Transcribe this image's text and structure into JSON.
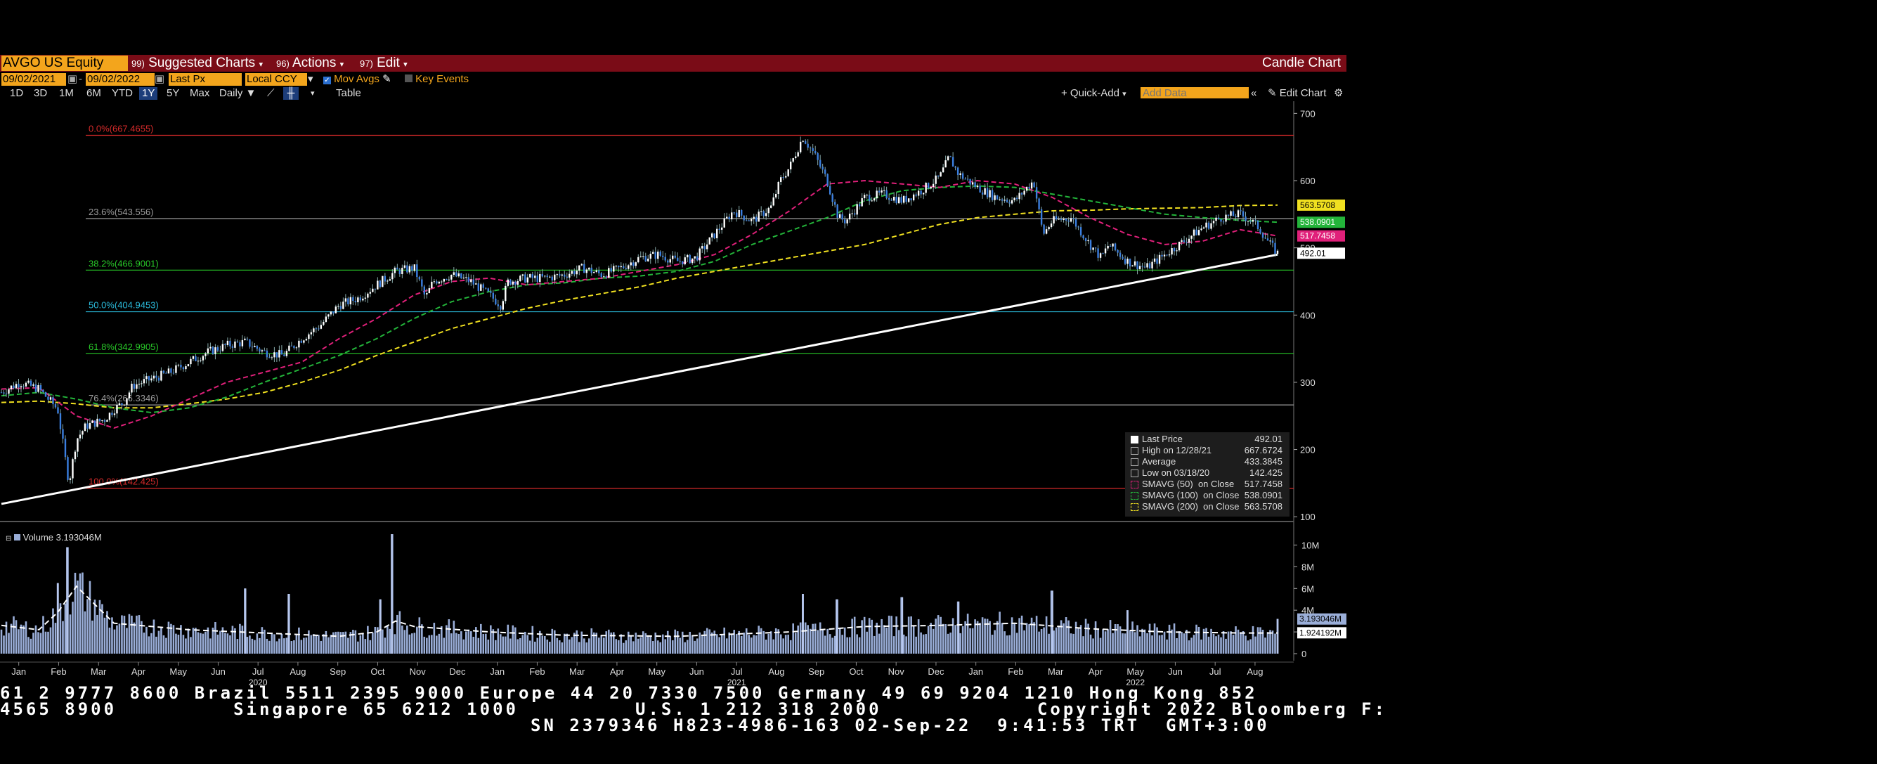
{
  "toolbar": {
    "ticker": "AVGO US Equity",
    "suggested": "Suggested Charts",
    "suggested_num": "99)",
    "actions": "Actions",
    "actions_num": "96)",
    "edit": "Edit",
    "edit_num": "97)",
    "title": "Candle Chart"
  },
  "controls": {
    "start_date": "09/02/2021",
    "end_date": "09/02/2022",
    "field": "Last Px",
    "currency": "Local CCY",
    "mov_avgs": "Mov Avgs",
    "key_events": "Key Events",
    "periods": [
      "1D",
      "3D",
      "1M",
      "6M",
      "YTD",
      "1Y",
      "5Y",
      "Max"
    ],
    "selected_period": "1Y",
    "frequency": "Daily",
    "table": "Table",
    "quick_add": "+ Quick-Add",
    "add_data_placeholder": "Add Data",
    "edit_chart": "Edit Chart"
  },
  "colors": {
    "bg": "#000000",
    "toolbar": "#7a0c17",
    "amber": "#f3a51c",
    "sma50": "#e0207a",
    "sma100": "#23b43a",
    "sma200": "#f0e020",
    "candle_up": "#ffffff",
    "candle_down": "#3b7fe0"
  },
  "chart_data": {
    "type": "candlestick",
    "x_ticks": [
      "Jan",
      "Feb",
      "Mar",
      "Apr",
      "May",
      "Jun",
      "Jul",
      "Aug",
      "Sep",
      "Oct",
      "Nov",
      "Dec",
      "Jan",
      "Feb",
      "Mar",
      "Apr",
      "May",
      "Jun",
      "Jul",
      "Aug",
      "Sep",
      "Oct",
      "Nov",
      "Dec",
      "Jan",
      "Feb",
      "Mar",
      "Apr",
      "May",
      "Jun",
      "Jul",
      "Aug"
    ],
    "year_labels": [
      {
        "year": "2020",
        "at": "Jul"
      },
      {
        "year": "2021",
        "at": "Jul"
      },
      {
        "year": "2022",
        "at": "May"
      }
    ],
    "y_ticks": [
      100,
      200,
      300,
      400,
      500,
      600,
      700
    ],
    "ylim": [
      95,
      715
    ],
    "price_series": [
      {
        "x": 0,
        "y": 285
      },
      {
        "x": 1,
        "y": 300
      },
      {
        "x": 2,
        "y": 290
      },
      {
        "x": 3,
        "y": 260
      },
      {
        "x": 3.6,
        "y": 150
      },
      {
        "x": 4,
        "y": 215
      },
      {
        "x": 4.5,
        "y": 235
      },
      {
        "x": 5,
        "y": 240
      },
      {
        "x": 5.5,
        "y": 245
      },
      {
        "x": 6,
        "y": 260
      },
      {
        "x": 6.5,
        "y": 270
      },
      {
        "x": 7,
        "y": 295
      },
      {
        "x": 8,
        "y": 305
      },
      {
        "x": 9,
        "y": 315
      },
      {
        "x": 10,
        "y": 330
      },
      {
        "x": 11,
        "y": 345
      },
      {
        "x": 12,
        "y": 355
      },
      {
        "x": 13,
        "y": 360
      },
      {
        "x": 14,
        "y": 345
      },
      {
        "x": 15,
        "y": 340
      },
      {
        "x": 16,
        "y": 365
      },
      {
        "x": 17,
        "y": 385
      },
      {
        "x": 18,
        "y": 415
      },
      {
        "x": 19,
        "y": 425
      },
      {
        "x": 20,
        "y": 445
      },
      {
        "x": 21,
        "y": 465
      },
      {
        "x": 22,
        "y": 470
      },
      {
        "x": 22.6,
        "y": 425
      },
      {
        "x": 23,
        "y": 450
      },
      {
        "x": 24,
        "y": 460
      },
      {
        "x": 25,
        "y": 450
      },
      {
        "x": 26,
        "y": 430
      },
      {
        "x": 26.6,
        "y": 415
      },
      {
        "x": 27,
        "y": 450
      },
      {
        "x": 28,
        "y": 455
      },
      {
        "x": 29,
        "y": 455
      },
      {
        "x": 30,
        "y": 460
      },
      {
        "x": 31,
        "y": 470
      },
      {
        "x": 32,
        "y": 460
      },
      {
        "x": 33,
        "y": 470
      },
      {
        "x": 34,
        "y": 485
      },
      {
        "x": 35,
        "y": 490
      },
      {
        "x": 36,
        "y": 480
      },
      {
        "x": 37,
        "y": 485
      },
      {
        "x": 38,
        "y": 520
      },
      {
        "x": 39,
        "y": 555
      },
      {
        "x": 40,
        "y": 540
      },
      {
        "x": 41,
        "y": 560
      },
      {
        "x": 41.5,
        "y": 600
      },
      {
        "x": 42,
        "y": 620
      },
      {
        "x": 42.7,
        "y": 665
      },
      {
        "x": 43.3,
        "y": 640
      },
      {
        "x": 44,
        "y": 600
      },
      {
        "x": 44.6,
        "y": 545
      },
      {
        "x": 45,
        "y": 540
      },
      {
        "x": 46,
        "y": 575
      },
      {
        "x": 47,
        "y": 580
      },
      {
        "x": 48,
        "y": 570
      },
      {
        "x": 49,
        "y": 585
      },
      {
        "x": 50,
        "y": 605
      },
      {
        "x": 50.5,
        "y": 635
      },
      {
        "x": 51,
        "y": 610
      },
      {
        "x": 52,
        "y": 590
      },
      {
        "x": 53,
        "y": 575
      },
      {
        "x": 54,
        "y": 570
      },
      {
        "x": 55,
        "y": 600
      },
      {
        "x": 55.5,
        "y": 520
      },
      {
        "x": 56,
        "y": 540
      },
      {
        "x": 57,
        "y": 545
      },
      {
        "x": 58,
        "y": 505
      },
      {
        "x": 58.6,
        "y": 485
      },
      {
        "x": 59,
        "y": 505
      },
      {
        "x": 60,
        "y": 480
      },
      {
        "x": 61,
        "y": 470
      },
      {
        "x": 62,
        "y": 490
      },
      {
        "x": 63,
        "y": 510
      },
      {
        "x": 64,
        "y": 530
      },
      {
        "x": 65,
        "y": 545
      },
      {
        "x": 66,
        "y": 550
      },
      {
        "x": 66.6,
        "y": 540
      },
      {
        "x": 67,
        "y": 530
      },
      {
        "x": 67.6,
        "y": 505
      },
      {
        "x": 68,
        "y": 492
      }
    ],
    "sma50": [
      {
        "x": 0,
        "y": 290
      },
      {
        "x": 2,
        "y": 292
      },
      {
        "x": 4,
        "y": 250
      },
      {
        "x": 6,
        "y": 232
      },
      {
        "x": 8,
        "y": 250
      },
      {
        "x": 10,
        "y": 275
      },
      {
        "x": 12,
        "y": 300
      },
      {
        "x": 14,
        "y": 315
      },
      {
        "x": 16,
        "y": 330
      },
      {
        "x": 18,
        "y": 365
      },
      {
        "x": 20,
        "y": 395
      },
      {
        "x": 22,
        "y": 430
      },
      {
        "x": 24,
        "y": 450
      },
      {
        "x": 26,
        "y": 455
      },
      {
        "x": 28,
        "y": 445
      },
      {
        "x": 30,
        "y": 450
      },
      {
        "x": 32,
        "y": 455
      },
      {
        "x": 34,
        "y": 465
      },
      {
        "x": 36,
        "y": 475
      },
      {
        "x": 38,
        "y": 490
      },
      {
        "x": 40,
        "y": 520
      },
      {
        "x": 42,
        "y": 555
      },
      {
        "x": 44,
        "y": 595
      },
      {
        "x": 46,
        "y": 600
      },
      {
        "x": 48,
        "y": 595
      },
      {
        "x": 50,
        "y": 590
      },
      {
        "x": 52,
        "y": 600
      },
      {
        "x": 54,
        "y": 595
      },
      {
        "x": 56,
        "y": 575
      },
      {
        "x": 58,
        "y": 545
      },
      {
        "x": 60,
        "y": 520
      },
      {
        "x": 62,
        "y": 505
      },
      {
        "x": 64,
        "y": 510
      },
      {
        "x": 66,
        "y": 527
      },
      {
        "x": 68,
        "y": 517.7
      }
    ],
    "sma100": [
      {
        "x": 0,
        "y": 280
      },
      {
        "x": 2,
        "y": 285
      },
      {
        "x": 4,
        "y": 275
      },
      {
        "x": 6,
        "y": 262
      },
      {
        "x": 8,
        "y": 255
      },
      {
        "x": 10,
        "y": 262
      },
      {
        "x": 12,
        "y": 278
      },
      {
        "x": 14,
        "y": 300
      },
      {
        "x": 16,
        "y": 320
      },
      {
        "x": 18,
        "y": 340
      },
      {
        "x": 20,
        "y": 365
      },
      {
        "x": 22,
        "y": 395
      },
      {
        "x": 24,
        "y": 420
      },
      {
        "x": 26,
        "y": 435
      },
      {
        "x": 28,
        "y": 445
      },
      {
        "x": 30,
        "y": 448
      },
      {
        "x": 32,
        "y": 455
      },
      {
        "x": 34,
        "y": 458
      },
      {
        "x": 36,
        "y": 465
      },
      {
        "x": 38,
        "y": 480
      },
      {
        "x": 40,
        "y": 505
      },
      {
        "x": 42,
        "y": 525
      },
      {
        "x": 44,
        "y": 545
      },
      {
        "x": 46,
        "y": 570
      },
      {
        "x": 48,
        "y": 585
      },
      {
        "x": 50,
        "y": 590
      },
      {
        "x": 52,
        "y": 592
      },
      {
        "x": 54,
        "y": 590
      },
      {
        "x": 56,
        "y": 580
      },
      {
        "x": 58,
        "y": 570
      },
      {
        "x": 60,
        "y": 560
      },
      {
        "x": 62,
        "y": 550
      },
      {
        "x": 64,
        "y": 545
      },
      {
        "x": 66,
        "y": 541
      },
      {
        "x": 68,
        "y": 538.1
      }
    ],
    "sma200": [
      {
        "x": 0,
        "y": 270
      },
      {
        "x": 2,
        "y": 272
      },
      {
        "x": 4,
        "y": 268
      },
      {
        "x": 6,
        "y": 262
      },
      {
        "x": 8,
        "y": 262
      },
      {
        "x": 10,
        "y": 268
      },
      {
        "x": 12,
        "y": 275
      },
      {
        "x": 14,
        "y": 285
      },
      {
        "x": 16,
        "y": 300
      },
      {
        "x": 18,
        "y": 318
      },
      {
        "x": 20,
        "y": 340
      },
      {
        "x": 22,
        "y": 360
      },
      {
        "x": 24,
        "y": 380
      },
      {
        "x": 26,
        "y": 395
      },
      {
        "x": 28,
        "y": 410
      },
      {
        "x": 30,
        "y": 422
      },
      {
        "x": 32,
        "y": 432
      },
      {
        "x": 34,
        "y": 442
      },
      {
        "x": 36,
        "y": 455
      },
      {
        "x": 38,
        "y": 465
      },
      {
        "x": 40,
        "y": 475
      },
      {
        "x": 42,
        "y": 485
      },
      {
        "x": 44,
        "y": 495
      },
      {
        "x": 46,
        "y": 505
      },
      {
        "x": 48,
        "y": 520
      },
      {
        "x": 50,
        "y": 535
      },
      {
        "x": 52,
        "y": 545
      },
      {
        "x": 54,
        "y": 550
      },
      {
        "x": 56,
        "y": 555
      },
      {
        "x": 58,
        "y": 556
      },
      {
        "x": 60,
        "y": 558
      },
      {
        "x": 62,
        "y": 559
      },
      {
        "x": 64,
        "y": 560
      },
      {
        "x": 66,
        "y": 563
      },
      {
        "x": 68,
        "y": 563.6
      }
    ],
    "fib_levels": [
      {
        "label": "0.0%(667.4655)",
        "value": 667.4655,
        "color": "#d42a2a"
      },
      {
        "label": "23.6%(543.556)",
        "value": 543.556,
        "color": "#9a9a9a"
      },
      {
        "label": "38.2%(466.9001)",
        "value": 466.9001,
        "color": "#28c828"
      },
      {
        "label": "50.0%(404.9453)",
        "value": 404.9453,
        "color": "#2ab8d8"
      },
      {
        "label": "61.8%(342.9905)",
        "value": 342.9905,
        "color": "#28c828"
      },
      {
        "label": "76.4%(266.3346)",
        "value": 266.3346,
        "color": "#9a9a9a"
      },
      {
        "label": "100.0%(142.425)",
        "value": 142.425,
        "color": "#d42a2a"
      }
    ],
    "trendline": {
      "from": {
        "x": 0,
        "y": 140
      },
      "to": {
        "x": 68,
        "y": 490
      }
    },
    "price_tags": [
      {
        "label": "563.5708",
        "value": 563.5708,
        "bg": "#f0e020",
        "fg": "#000"
      },
      {
        "label": "538.0901",
        "value": 538.0901,
        "bg": "#23b43a",
        "fg": "#fff"
      },
      {
        "label": "517.7458",
        "value": 517.7458,
        "bg": "#e0207a",
        "fg": "#fff"
      },
      {
        "label": "492.01",
        "value": 492.01,
        "bg": "#ffffff",
        "fg": "#000"
      }
    ],
    "legend": [
      {
        "name": "Last Price",
        "value": "492.01"
      },
      {
        "name": "High on 12/28/21",
        "value": "667.6724"
      },
      {
        "name": "Average",
        "value": "433.3845"
      },
      {
        "name": "Low on 03/18/20",
        "value": "142.425"
      },
      {
        "name": "SMAVG (50)  on Close",
        "value": "517.7458"
      },
      {
        "name": "SMAVG (100)  on Close",
        "value": "538.0901"
      },
      {
        "name": "SMAVG (200)  on Close",
        "value": "563.5708"
      }
    ],
    "volume": {
      "label": "Volume 3.193046M",
      "y_ticks": [
        "0",
        "2M",
        "4M",
        "6M",
        "8M",
        "10M"
      ],
      "ylim": [
        0,
        11
      ],
      "last_tag": "3.193046M",
      "avg_tag": "1.924192M",
      "spikes": [
        {
          "x": 3.5,
          "y": 9.8
        },
        {
          "x": 3.0,
          "y": 6.5
        },
        {
          "x": 13,
          "y": 6.0
        },
        {
          "x": 15.3,
          "y": 5.5
        },
        {
          "x": 20.8,
          "y": 11.0
        },
        {
          "x": 20.2,
          "y": 5.0
        },
        {
          "x": 42.7,
          "y": 5.5
        },
        {
          "x": 44.5,
          "y": 5.0
        },
        {
          "x": 48,
          "y": 5.2
        },
        {
          "x": 51,
          "y": 4.8
        },
        {
          "x": 56,
          "y": 5.8
        },
        {
          "x": 60,
          "y": 4.0
        },
        {
          "x": 68,
          "y": 3.2
        }
      ],
      "avg_line": [
        {
          "x": 0,
          "y": 2.6
        },
        {
          "x": 2,
          "y": 2.2
        },
        {
          "x": 3,
          "y": 3.8
        },
        {
          "x": 4,
          "y": 6.2
        },
        {
          "x": 5,
          "y": 4.5
        },
        {
          "x": 6,
          "y": 2.8
        },
        {
          "x": 10,
          "y": 2.2
        },
        {
          "x": 14,
          "y": 1.9
        },
        {
          "x": 18,
          "y": 1.6
        },
        {
          "x": 20,
          "y": 2.0
        },
        {
          "x": 21,
          "y": 3.0
        },
        {
          "x": 22,
          "y": 2.5
        },
        {
          "x": 26,
          "y": 2.0
        },
        {
          "x": 30,
          "y": 1.7
        },
        {
          "x": 36,
          "y": 1.6
        },
        {
          "x": 42,
          "y": 2.0
        },
        {
          "x": 46,
          "y": 2.5
        },
        {
          "x": 50,
          "y": 2.6
        },
        {
          "x": 54,
          "y": 2.8
        },
        {
          "x": 58,
          "y": 2.3
        },
        {
          "x": 62,
          "y": 2.0
        },
        {
          "x": 66,
          "y": 1.9
        },
        {
          "x": 68,
          "y": 1.9
        }
      ]
    }
  },
  "footer": {
    "line1": "61 2 9777 8600 Brazil 5511 2395 9000 Europe 44 20 7330 7500 Germany 49 69 9204 1210 Hong Kong 852",
    "line2": "4565 8900         Singapore 65 6212 1000         U.S. 1 212 318 2000            Copyright 2022 Bloomberg F:",
    "line3": "SN 2379346 H823-4986-163 02-Sep-22  9:41:53 TRT  GMT+3:00"
  }
}
